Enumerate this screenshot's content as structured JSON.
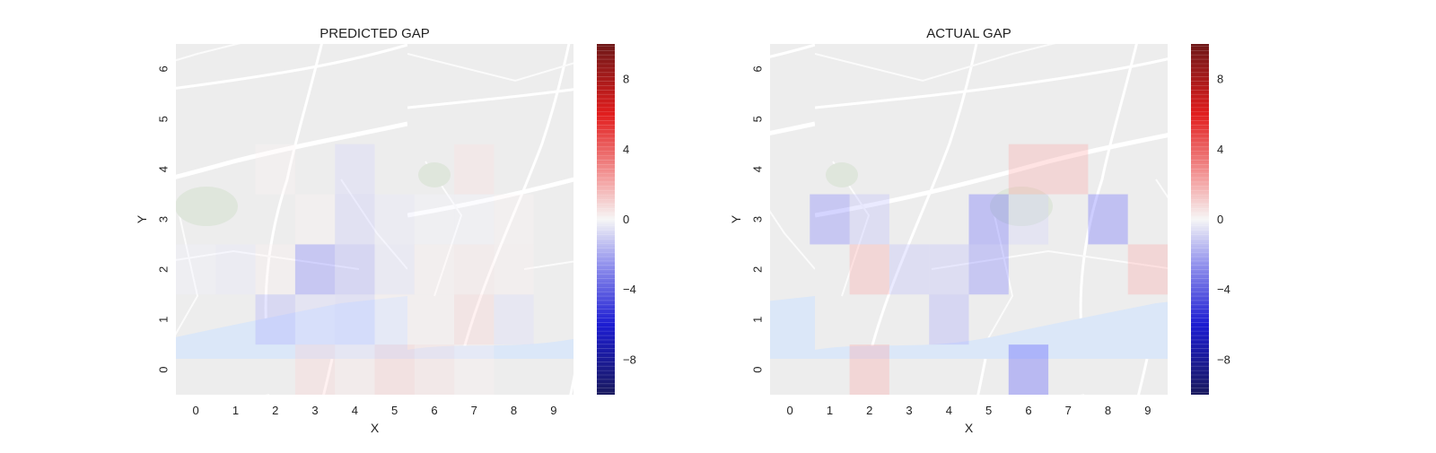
{
  "chart_data": [
    {
      "type": "heatmap",
      "title": "PREDICTED GAP",
      "xlabel": "X",
      "ylabel": "Y",
      "x_ticks": [
        "0",
        "1",
        "2",
        "3",
        "4",
        "5",
        "6",
        "7",
        "8",
        "9"
      ],
      "y_ticks": [
        "0",
        "1",
        "2",
        "3",
        "4",
        "5",
        "6"
      ],
      "colorbar": {
        "range": [
          -10,
          10
        ],
        "ticks": [
          -8,
          -4,
          0,
          4,
          8
        ],
        "tick_labels": [
          "−8",
          "−4",
          "0",
          "4",
          "8"
        ],
        "colormap": "seismic"
      },
      "background": "street map",
      "cells": [
        {
          "x": 0,
          "y": 2,
          "v": -0.3
        },
        {
          "x": 1,
          "y": 2,
          "v": -0.5
        },
        {
          "x": 2,
          "y": 2,
          "v": 0.3
        },
        {
          "x": 3,
          "y": 2,
          "v": -3.0
        },
        {
          "x": 4,
          "y": 2,
          "v": -2.0
        },
        {
          "x": 5,
          "y": 2,
          "v": -0.6
        },
        {
          "x": 6,
          "y": 2,
          "v": 0.3
        },
        {
          "x": 7,
          "y": 2,
          "v": 0.5
        },
        {
          "x": 8,
          "y": 2,
          "v": 0.3
        },
        {
          "x": 2,
          "y": 1,
          "v": -1.8
        },
        {
          "x": 3,
          "y": 1,
          "v": -1.0
        },
        {
          "x": 4,
          "y": 1,
          "v": -1.2
        },
        {
          "x": 5,
          "y": 1,
          "v": 0.3
        },
        {
          "x": 6,
          "y": 1,
          "v": 0.3
        },
        {
          "x": 7,
          "y": 1,
          "v": 1.0
        },
        {
          "x": 8,
          "y": 1,
          "v": -0.8
        },
        {
          "x": 3,
          "y": 0,
          "v": 1.0
        },
        {
          "x": 4,
          "y": 0,
          "v": 0.5
        },
        {
          "x": 5,
          "y": 0,
          "v": 1.2
        },
        {
          "x": 6,
          "y": 0,
          "v": 0.7
        },
        {
          "x": 7,
          "y": 0,
          "v": 0.3
        },
        {
          "x": 4,
          "y": 3,
          "v": -1.2
        },
        {
          "x": 5,
          "y": 3,
          "v": -0.5
        },
        {
          "x": 6,
          "y": 3,
          "v": -0.2
        },
        {
          "x": 7,
          "y": 3,
          "v": -0.2
        },
        {
          "x": 8,
          "y": 3,
          "v": 0.2
        },
        {
          "x": 3,
          "y": 3,
          "v": 0.2
        },
        {
          "x": 4,
          "y": 4,
          "v": -1.0
        },
        {
          "x": 7,
          "y": 4,
          "v": 0.7
        },
        {
          "x": 2,
          "y": 4,
          "v": 0.2
        }
      ]
    },
    {
      "type": "heatmap",
      "title": "ACTUAL GAP",
      "xlabel": "X",
      "ylabel": "Y",
      "x_ticks": [
        "0",
        "1",
        "2",
        "3",
        "4",
        "5",
        "6",
        "7",
        "8",
        "9"
      ],
      "y_ticks": [
        "0",
        "1",
        "2",
        "3",
        "4",
        "5",
        "6"
      ],
      "colorbar": {
        "range": [
          -10,
          10
        ],
        "ticks": [
          -8,
          -4,
          0,
          4,
          8
        ],
        "tick_labels": [
          "−8",
          "−4",
          "0",
          "4",
          "8"
        ],
        "colormap": "seismic"
      },
      "background": "street map",
      "cells": [
        {
          "x": 1,
          "y": 3,
          "v": -3.0
        },
        {
          "x": 2,
          "y": 3,
          "v": -1.5
        },
        {
          "x": 5,
          "y": 3,
          "v": -3.5
        },
        {
          "x": 6,
          "y": 3,
          "v": -1.0
        },
        {
          "x": 8,
          "y": 3,
          "v": -3.5
        },
        {
          "x": 6,
          "y": 4,
          "v": 2.0
        },
        {
          "x": 7,
          "y": 4,
          "v": 2.0
        },
        {
          "x": 2,
          "y": 2,
          "v": 2.0
        },
        {
          "x": 3,
          "y": 2,
          "v": -1.5
        },
        {
          "x": 4,
          "y": 2,
          "v": -1.5
        },
        {
          "x": 5,
          "y": 2,
          "v": -3.0
        },
        {
          "x": 9,
          "y": 2,
          "v": 2.0
        },
        {
          "x": 4,
          "y": 1,
          "v": -2.0
        },
        {
          "x": 2,
          "y": 0,
          "v": 2.0
        },
        {
          "x": 6,
          "y": 0,
          "v": -4.0
        }
      ]
    }
  ]
}
